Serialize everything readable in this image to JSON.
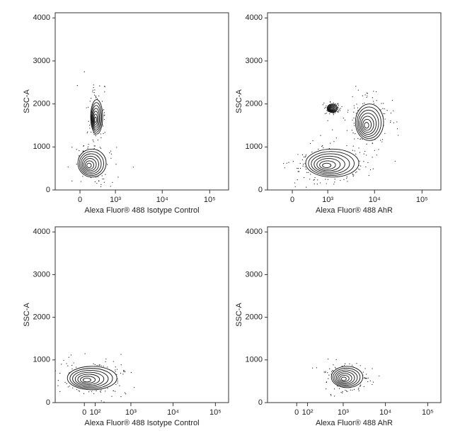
{
  "chart_data": [
    {
      "type": "contour",
      "x_label": "Alexa Fluor® 488 Isotype Control",
      "y_label": "SSC-A",
      "xscale": "biexponential",
      "xlim": [
        -560,
        250000
      ],
      "ylim": [
        0,
        4120
      ],
      "xticks": [
        0,
        {
          "value": 1000,
          "label": "10³"
        },
        {
          "value": 10000,
          "label": "10⁴"
        },
        {
          "value": 100000,
          "label": "10⁵"
        }
      ],
      "yticks": [
        0,
        1000,
        2000,
        3000,
        4000
      ],
      "populations": {
        "x_low": [
          -38,
          200
        ],
        "x_high": [
          607,
          495
        ],
        "y_low": [
          300,
          1300
        ],
        "y_high": [
          950,
          2100
        ]
      }
    },
    {
      "type": "contour",
      "x_label": "Alexa Fluor® 488 AhR",
      "y_label": "SSC-A",
      "xscale": "biexponential",
      "xlim": [
        -560,
        250000
      ],
      "ylim": [
        0,
        4120
      ],
      "xticks": [
        0,
        {
          "value": 1000,
          "label": "10³"
        },
        {
          "value": 10000,
          "label": "10⁴"
        },
        {
          "value": 100000,
          "label": "10⁵"
        }
      ],
      "yticks": [
        0,
        1000,
        2000,
        3000,
        4000
      ],
      "populations": {
        "x_low": [
          258,
          3950,
          970
        ],
        "x_high": [
          4660,
          15500,
          1630
        ],
        "y_low": [
          300,
          1150,
          1800
        ],
        "y_high": [
          950,
          2000,
          2000
        ]
      }
    },
    {
      "type": "contour",
      "x_label": "Alexa Fluor® 488 Isotype Control",
      "y_label": "SSC-A",
      "xscale": "biexponential",
      "xlim": [
        -375,
        205000
      ],
      "ylim": [
        0,
        4120
      ],
      "xticks": [
        0,
        {
          "value": 100,
          "label": "10²"
        },
        {
          "value": 1000,
          "label": "10³"
        },
        {
          "value": 10000,
          "label": "10⁴"
        },
        {
          "value": 100000,
          "label": "10⁵"
        }
      ],
      "yticks": [
        0,
        1000,
        2000,
        3000,
        4000
      ],
      "populations": {
        "x_low": [
          -170
        ],
        "x_high": [
          456
        ],
        "y_low": [
          300
        ],
        "y_high": [
          850
        ]
      }
    },
    {
      "type": "contour",
      "x_label": "Alexa Fluor® 488 AhR",
      "y_label": "SSC-A",
      "xscale": "biexponential",
      "xlim": [
        -375,
        205000
      ],
      "ylim": [
        0,
        4120
      ],
      "xticks": [
        0,
        {
          "value": 100,
          "label": "10²"
        },
        {
          "value": 1000,
          "label": "10³"
        },
        {
          "value": 10000,
          "label": "10⁴"
        },
        {
          "value": 100000,
          "label": "10⁵"
        }
      ],
      "yticks": [
        0,
        1000,
        2000,
        3000,
        4000
      ],
      "populations": {
        "x_low": [
          515
        ],
        "x_high": [
          2930
        ],
        "y_low": [
          350
        ],
        "y_high": [
          850
        ]
      }
    }
  ]
}
